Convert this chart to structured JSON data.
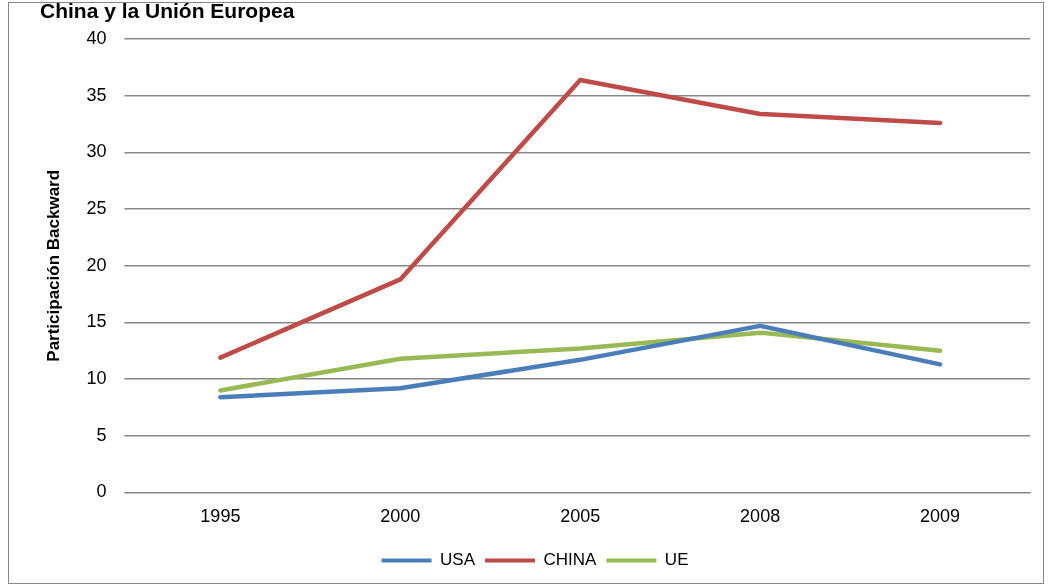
{
  "chart_data": {
    "type": "line",
    "title": "China y la Unión Europea",
    "ylabel": "Participación Backward",
    "categories": [
      "1995",
      "2000",
      "2005",
      "2008",
      "2009"
    ],
    "series": [
      {
        "name": "USA",
        "color": "#4a7ebb",
        "values": [
          8.4,
          9.2,
          11.7,
          14.7,
          11.3
        ]
      },
      {
        "name": "CHINA",
        "color": "#be4b48",
        "values": [
          11.9,
          18.8,
          36.4,
          33.4,
          32.6
        ]
      },
      {
        "name": "UE",
        "color": "#98b954",
        "values": [
          9.0,
          11.8,
          12.7,
          14.1,
          12.5
        ]
      }
    ],
    "ylim": [
      0,
      40
    ],
    "yticks": [
      0,
      5,
      10,
      15,
      20,
      25,
      30,
      35,
      40
    ],
    "grid": "y",
    "legend": "bottom",
    "marker": "none",
    "line_style": "solid"
  }
}
